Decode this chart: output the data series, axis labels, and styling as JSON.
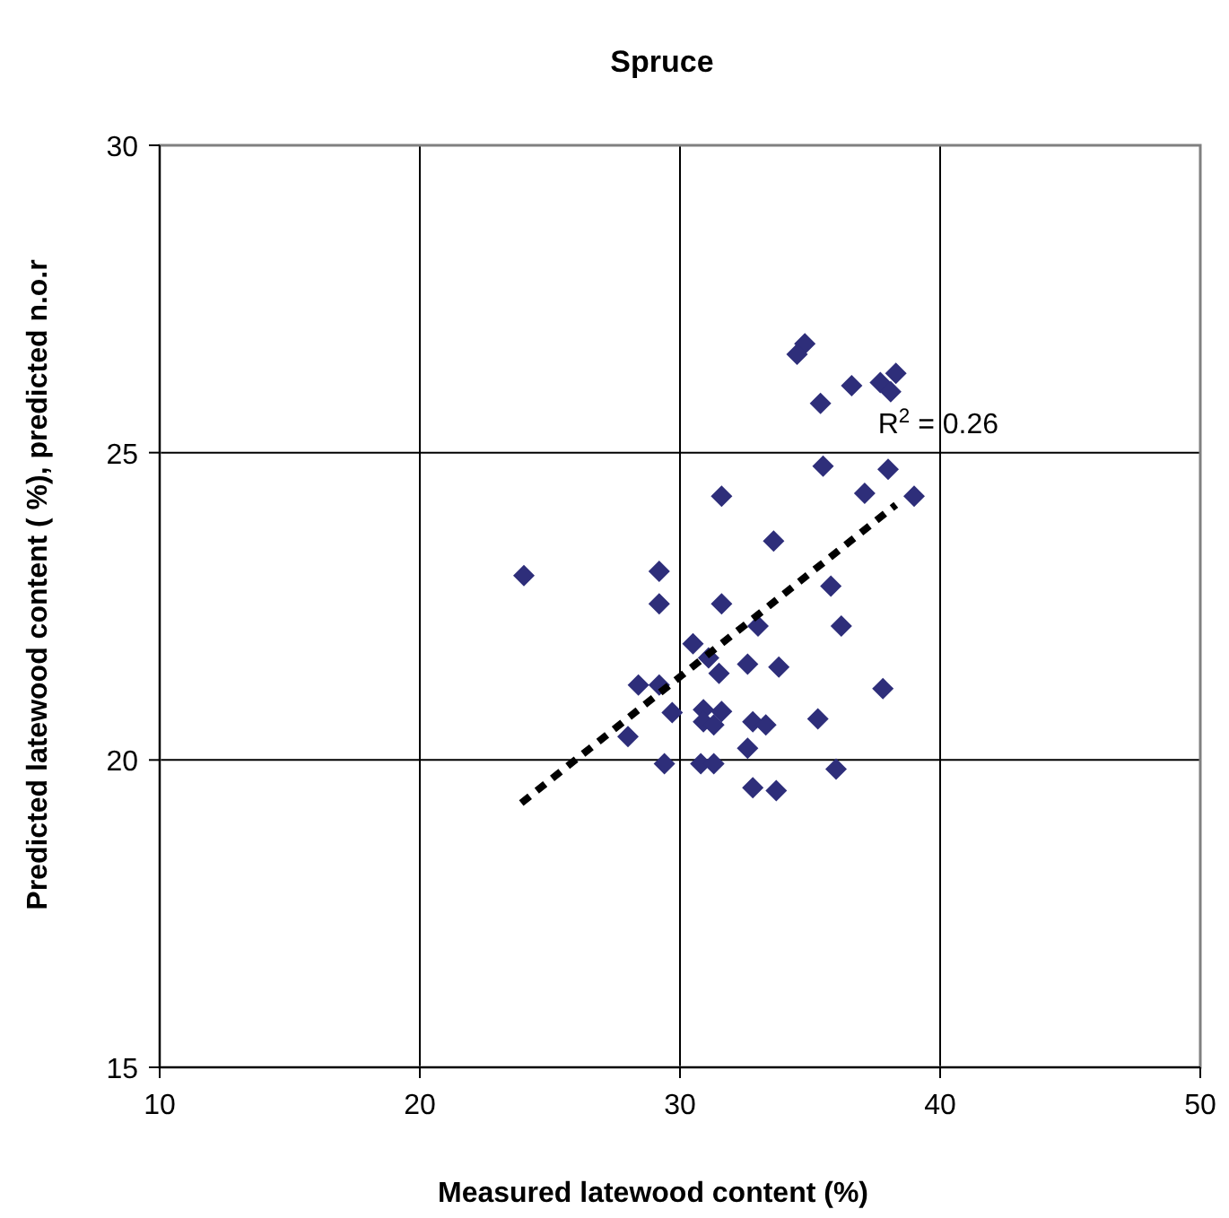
{
  "chart_data": {
    "type": "scatter",
    "title": "Spruce",
    "xlabel": "Measured latewood content (%)",
    "ylabel": "Predicted latewood content ( %), predicted n.o.r",
    "xlim": [
      10,
      50
    ],
    "xticks": [
      10,
      20,
      30,
      40,
      50
    ],
    "ylim": [
      15,
      30
    ],
    "yticks": [
      15,
      20,
      25,
      30
    ],
    "grid": true,
    "marker": "diamond",
    "annotations": [
      "R$^{2}$ = 0.26"
    ],
    "series": [
      {
        "color": "#2e2e7a",
        "x": [
          24.0,
          29.2,
          29.2,
          31.6,
          33.6,
          35.8,
          36.2,
          33.0,
          30.5,
          31.1,
          31.5,
          32.6,
          33.8,
          37.8,
          28.4,
          29.2,
          29.7,
          30.9,
          31.6,
          30.9,
          31.3,
          32.8,
          33.3,
          35.3,
          28.0,
          32.6,
          29.4,
          30.8,
          31.3,
          36.0,
          32.8,
          33.7,
          34.8,
          34.5,
          36.6,
          35.4,
          37.7,
          38.1,
          38.3,
          35.5,
          38.0,
          31.6,
          37.1,
          39.0
        ],
        "values": [
          23.0,
          23.07,
          22.54,
          22.54,
          23.56,
          22.83,
          22.18,
          22.18,
          21.89,
          21.66,
          21.41,
          21.56,
          21.51,
          21.16,
          21.22,
          21.22,
          20.77,
          20.82,
          20.79,
          20.62,
          20.57,
          20.62,
          20.57,
          20.67,
          20.38,
          20.19,
          19.94,
          19.94,
          19.94,
          19.85,
          19.55,
          19.5,
          26.77,
          26.6,
          26.09,
          25.8,
          26.14,
          25.99,
          26.29,
          24.78,
          24.73,
          24.29,
          24.34,
          24.29
        ]
      },
      {
        "type": "line",
        "color": "#000000",
        "line_style": "dashed",
        "marker": "none",
        "x": [
          23.9,
          38.3
        ],
        "values": [
          19.3,
          24.15
        ]
      }
    ]
  }
}
